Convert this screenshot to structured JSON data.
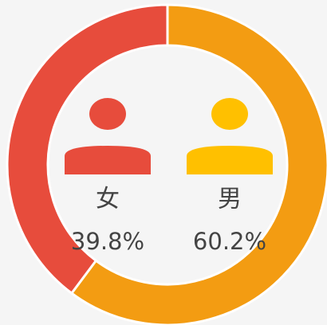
{
  "chart_data": {
    "type": "donut",
    "categories": [
      "男",
      "女"
    ],
    "values": [
      60.2,
      39.8
    ],
    "value_labels": [
      "60.2%",
      "39.8%"
    ],
    "colors": [
      "#f39c12",
      "#e74c3c"
    ],
    "icon_colors": [
      "#ffc000",
      "#e74c3c"
    ]
  }
}
